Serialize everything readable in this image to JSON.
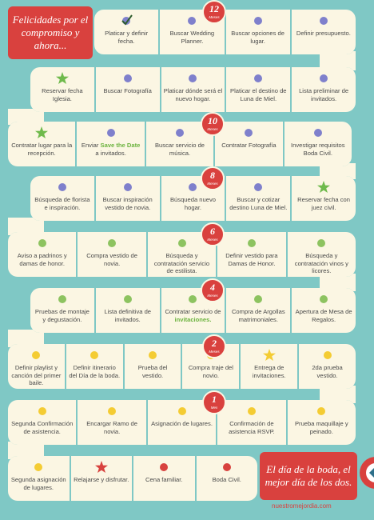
{
  "title_box": {
    "text": "Felicidades por el compromiso y ahora..."
  },
  "rows": [
    {
      "badge": {
        "number": "12",
        "unit": "Meses"
      },
      "tasks": [
        {
          "text": "Platicar y definir fecha.",
          "marker": "check",
          "color": "#7f80cc"
        },
        {
          "text": "Buscar Wedding Planner.",
          "marker": "dot",
          "color": "#7f80cc"
        },
        {
          "text": "Buscar opciones de lugar.",
          "marker": "dot",
          "color": "#7f80cc"
        },
        {
          "text": "Definir presupuesto.",
          "marker": "dot",
          "color": "#7f80cc"
        }
      ]
    },
    {
      "tasks": [
        {
          "text": "Reservar fecha Iglesia.",
          "marker": "star",
          "color": "#6fba4c"
        },
        {
          "text": "Buscar Fotografía",
          "marker": "dot",
          "color": "#7f80cc"
        },
        {
          "text": "Platicar dónde será el nuevo hogar.",
          "marker": "dot",
          "color": "#7f80cc"
        },
        {
          "text": "Platicar el destino de Luna de Miel.",
          "marker": "dot",
          "color": "#7f80cc"
        },
        {
          "text": "Lista preliminar de invitados.",
          "marker": "dot",
          "color": "#7f80cc"
        }
      ]
    },
    {
      "badge": {
        "number": "10",
        "unit": "Meses"
      },
      "tasks": [
        {
          "text": "Contratar lugar para la recepción.",
          "marker": "star",
          "color": "#6fba4c"
        },
        {
          "parts": [
            {
              "text": "Enviar"
            },
            {
              "text": "Save the Date",
              "color": "#6cb33f"
            },
            {
              "text": "a invitados."
            }
          ],
          "marker": "dot",
          "color": "#7f80cc"
        },
        {
          "text": "Buscar servicio de música.",
          "marker": "dot",
          "color": "#7f80cc"
        },
        {
          "text": "Contratar Fotografía",
          "marker": "dot",
          "color": "#7f80cc"
        },
        {
          "text": "Investigar requisitos Boda Civil.",
          "marker": "dot",
          "color": "#7f80cc"
        }
      ]
    },
    {
      "badge": {
        "number": "8",
        "unit": "Meses"
      },
      "tasks": [
        {
          "text": "Búsqueda de florista e inspiración.",
          "marker": "dot",
          "color": "#7f80cc"
        },
        {
          "text": "Buscar inspiración vestido de novia.",
          "marker": "dot",
          "color": "#7f80cc"
        },
        {
          "text": "Búsqueda nuevo hogar.",
          "marker": "dot",
          "color": "#7f80cc"
        },
        {
          "text": "Buscar y cotizar destino Luna de Miel.",
          "marker": "dot",
          "color": "#7f80cc"
        },
        {
          "text": "Reservar fecha con juez civil.",
          "marker": "star",
          "color": "#6fba4c"
        }
      ]
    },
    {
      "badge": {
        "number": "6",
        "unit": "Meses"
      },
      "tasks": [
        {
          "text": "Aviso a padrinos y damas de honor.",
          "marker": "dot",
          "color": "#8dc360"
        },
        {
          "text": "Compra vestido de novia.",
          "marker": "dot",
          "color": "#8dc360"
        },
        {
          "text": "Búsqueda y contratación servicio de estilista.",
          "marker": "dot",
          "color": "#8dc360"
        },
        {
          "text": "Definir vestido para Damas de Honor.",
          "marker": "dot",
          "color": "#8dc360"
        },
        {
          "text": "Búsqueda y contratación vinos y licores.",
          "marker": "dot",
          "color": "#8dc360"
        }
      ]
    },
    {
      "badge": {
        "number": "4",
        "unit": "Meses"
      },
      "tasks": [
        {
          "text": "Pruebas de montaje y degustación.",
          "marker": "dot",
          "color": "#8dc360"
        },
        {
          "text": "Lista definitiva de invitados.",
          "marker": "dot",
          "color": "#8dc360"
        },
        {
          "parts": [
            {
              "text": "Contratar servicio de"
            },
            {
              "text": "invitaciones.",
              "color": "#6cb33f"
            }
          ],
          "marker": "dot",
          "color": "#8dc360"
        },
        {
          "text": "Compra de Argollas matrimoniales.",
          "marker": "dot",
          "color": "#8dc360"
        },
        {
          "text": "Apertura de Mesa de Regalos.",
          "marker": "dot",
          "color": "#8dc360"
        }
      ]
    },
    {
      "badge": {
        "number": "2",
        "unit": "Meses"
      },
      "tasks": [
        {
          "text": "Definir playlist y canción del primer baile.",
          "marker": "dot",
          "color": "#f4cc33"
        },
        {
          "text": "Definir itinerario del Día de la boda.",
          "marker": "dot",
          "color": "#f4cc33"
        },
        {
          "text": "Prueba del vestido.",
          "marker": "dot",
          "color": "#f4cc33"
        },
        {
          "text": "Compra traje del novio.",
          "marker": "dot",
          "color": "#f4cc33"
        },
        {
          "text": "Entrega de invitaciones.",
          "marker": "star",
          "color": "#f4cc33"
        },
        {
          "text": "2da prueba vestido.",
          "marker": "dot",
          "color": "#f4cc33"
        }
      ]
    },
    {
      "badge": {
        "number": "1",
        "unit": "Mes"
      },
      "tasks": [
        {
          "text": "Segunda Confirmación de asistencia.",
          "marker": "dot",
          "color": "#f4cc33"
        },
        {
          "text": "Encargar Ramo de novia.",
          "marker": "dot",
          "color": "#f4cc33"
        },
        {
          "text": "Asignación de lugares.",
          "marker": "dot",
          "color": "#f4cc33"
        },
        {
          "text": "Confirmación de asistencia RSVP.",
          "marker": "dot",
          "color": "#f4cc33"
        },
        {
          "text": "Prueba maquillaje y peinado.",
          "marker": "dot",
          "color": "#f4cc33"
        }
      ]
    },
    {
      "tasks": [
        {
          "text": "Segunda asignación de lugares.",
          "marker": "dot",
          "color": "#f4cc33"
        },
        {
          "text": "Relajarse y disfrutar.",
          "marker": "star",
          "color": "#d8423e"
        },
        {
          "text": "Cena familiar.",
          "marker": "dot",
          "color": "#d8423e"
        },
        {
          "text": "Boda Civil.",
          "marker": "dot",
          "color": "#d8423e"
        }
      ]
    }
  ],
  "footer": {
    "text": "El día de la boda, el mejor día de los dos.",
    "url": "nuestromejordia.com"
  }
}
